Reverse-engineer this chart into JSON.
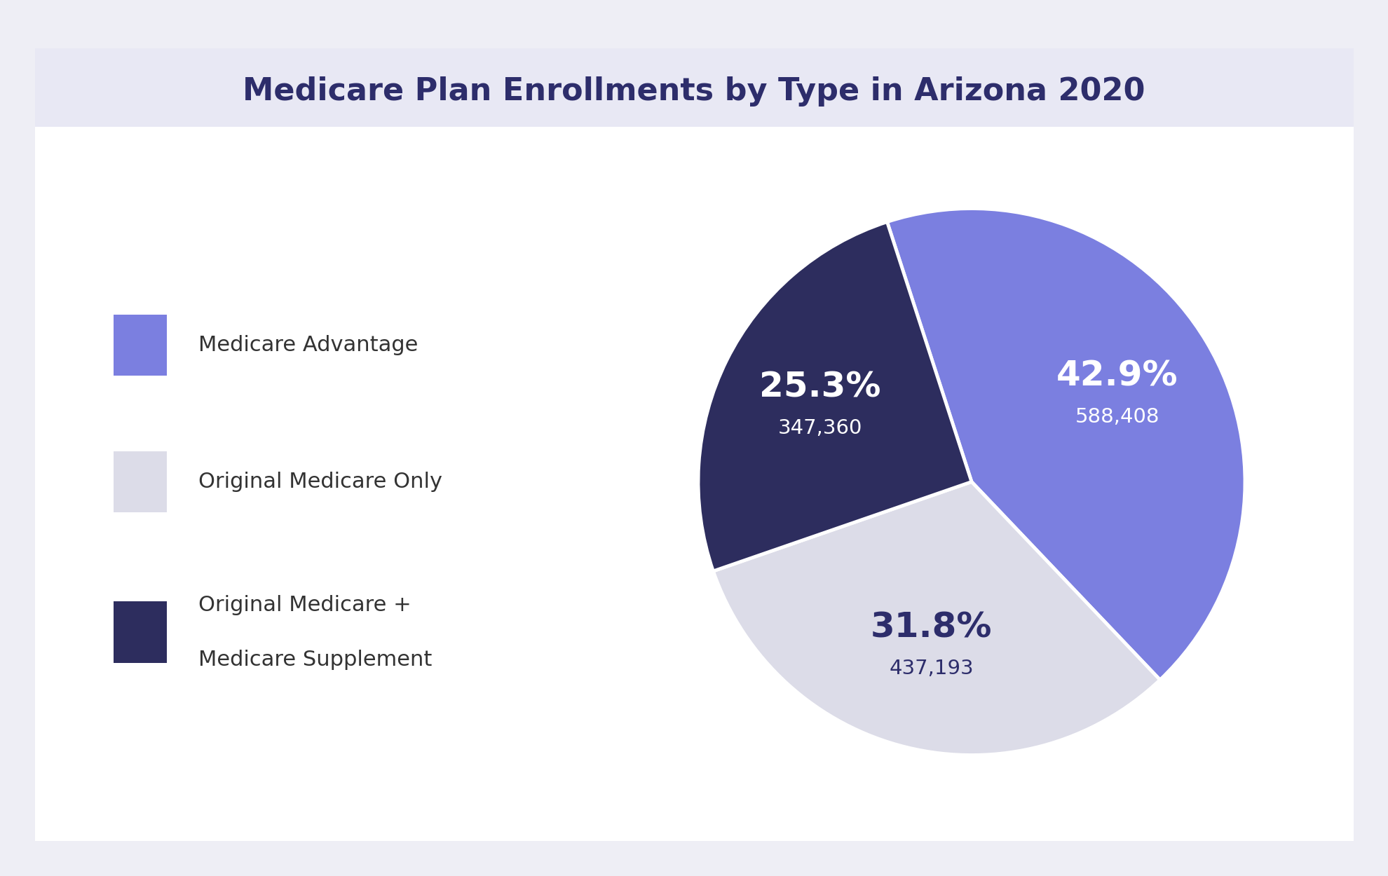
{
  "title": "Medicare Plan Enrollments by Type in Arizona 2020",
  "title_color": "#2d2d6b",
  "background_color": "#eeeef5",
  "chart_background": "#ffffff",
  "slices": [
    {
      "label": "Medicare Advantage",
      "pct": 42.9,
      "value": "588,408",
      "color": "#7b7fe0",
      "text_color": "#ffffff"
    },
    {
      "label": "Original Medicare Only",
      "pct": 31.8,
      "value": "437,193",
      "color": "#dcdce8",
      "text_color": "#2d2d6b"
    },
    {
      "label": "Original Medicare +\nMedicare Supplement",
      "pct": 25.3,
      "value": "347,360",
      "color": "#2d2d5e",
      "text_color": "#ffffff"
    }
  ],
  "legend_text_color": "#333333",
  "legend_fontsize": 22,
  "title_fontsize": 32,
  "pct_fontsize": 36,
  "value_fontsize": 21,
  "startangle": 108
}
